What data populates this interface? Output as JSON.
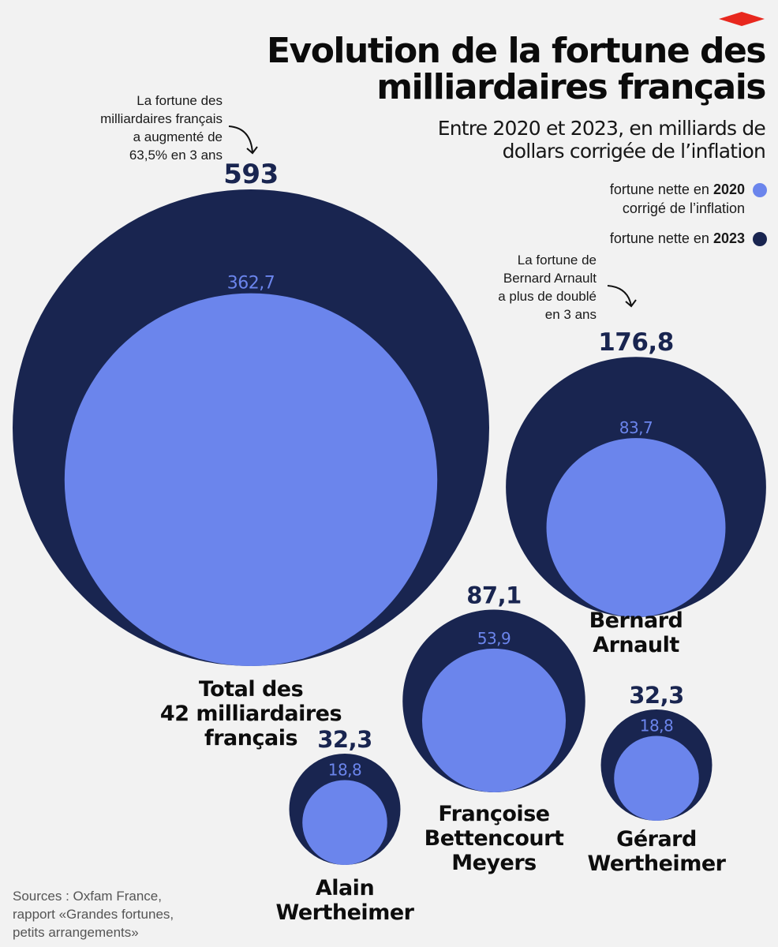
{
  "header": {
    "title_line1": "Evolution de la fortune des",
    "title_line2": "milliardaires français",
    "subtitle_line1": "Entre 2020 et 2023, en milliards de",
    "subtitle_line2": "dollars corrigée de l’inflation"
  },
  "legend": {
    "item_2020_prefix": "fortune nette en ",
    "item_2020_year": "2020",
    "item_2020_suffix": "corrigé de l’inflation",
    "item_2023_prefix": "fortune nette en ",
    "item_2023_year": "2023"
  },
  "annotations": {
    "total_note": [
      "La fortune des",
      "milliardaires français",
      "a augmenté de",
      "63,5% en 3 ans"
    ],
    "arnault_note": [
      "La fortune de",
      "Bernard Arnault",
      "a plus de doublé",
      "en 3 ans"
    ]
  },
  "sources": [
    "Sources : Oxfam France,",
    "rapport «Grandes fortunes,",
    "petits arrangements»"
  ],
  "colors": {
    "fortune_2020": "#6b85ec",
    "fortune_2023": "#192550",
    "background": "#f2f2f2",
    "logo": "#e8281e"
  },
  "icons": {
    "logo": "red-diamond-logo-icon",
    "arrow": "curved-arrow-icon"
  },
  "chart_data": {
    "type": "bubble",
    "title": "Evolution de la fortune des milliardaires français",
    "subtitle": "Entre 2020 et 2023, en milliards de dollars corrigée de l’inflation",
    "series": [
      {
        "name": "fortune nette en 2020 corrigé de l’inflation",
        "key": "v2020"
      },
      {
        "name": "fortune nette en 2023",
        "key": "v2023"
      }
    ],
    "items": [
      {
        "label": [
          "Total des",
          "42 milliardaires",
          "français"
        ],
        "v2023": 593,
        "v2023_label": "593",
        "v2020": 362.7,
        "v2020_label": "362,7"
      },
      {
        "label": [
          "Bernard",
          "Arnault"
        ],
        "v2023": 176.8,
        "v2023_label": "176,8",
        "v2020": 83.7,
        "v2020_label": "83,7"
      },
      {
        "label": [
          "Françoise",
          "Bettencourt",
          "Meyers"
        ],
        "v2023": 87.1,
        "v2023_label": "87,1",
        "v2020": 53.9,
        "v2020_label": "53,9"
      },
      {
        "label": [
          "Gérard",
          "Wertheimer"
        ],
        "v2023": 32.3,
        "v2023_label": "32,3",
        "v2020": 18.8,
        "v2020_label": "18,8"
      },
      {
        "label": [
          "Alain",
          "Wertheimer"
        ],
        "v2023": 32.3,
        "v2023_label": "32,3",
        "v2020": 18.8,
        "v2020_label": "18,8"
      }
    ]
  }
}
